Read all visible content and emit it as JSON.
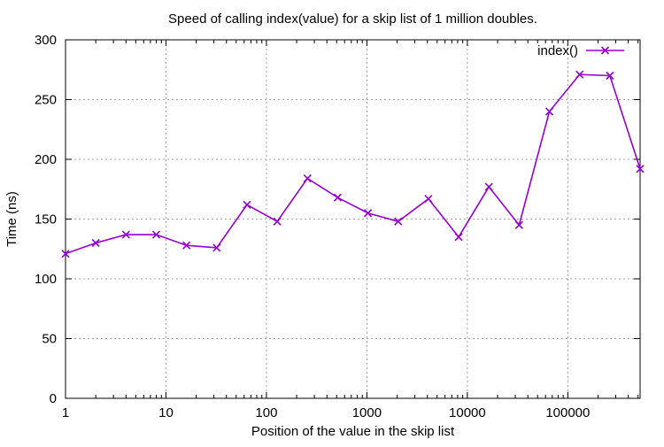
{
  "chart_data": {
    "type": "line",
    "title": "Speed of calling index(value) for a skip list of 1 million doubles.",
    "xlabel": "Position of the value in the skip list",
    "ylabel": "Time (ns)",
    "x_scale": "log",
    "xlim": [
      1,
      524288
    ],
    "ylim": [
      0,
      300
    ],
    "x_ticks": [
      1,
      10,
      100,
      1000,
      10000,
      100000
    ],
    "x_tick_labels": [
      "1",
      "10",
      "100",
      "1000",
      "10000",
      "100000"
    ],
    "y_ticks": [
      0,
      50,
      100,
      150,
      200,
      250,
      300
    ],
    "y_tick_labels": [
      "0",
      "50",
      "100",
      "150",
      "200",
      "250",
      "300"
    ],
    "grid": true,
    "legend_position": "top-right",
    "series": [
      {
        "name": "index()",
        "color": "#9400d3",
        "marker": "x",
        "x": [
          1,
          2,
          4,
          8,
          16,
          32,
          64,
          128,
          256,
          512,
          1024,
          2048,
          4096,
          8192,
          16384,
          32768,
          65536,
          131072,
          262144,
          524288
        ],
        "y": [
          121,
          130,
          137,
          137,
          128,
          126,
          162,
          148,
          184,
          168,
          155,
          148,
          167,
          135,
          177,
          145,
          240,
          271,
          270,
          192
        ]
      }
    ]
  }
}
